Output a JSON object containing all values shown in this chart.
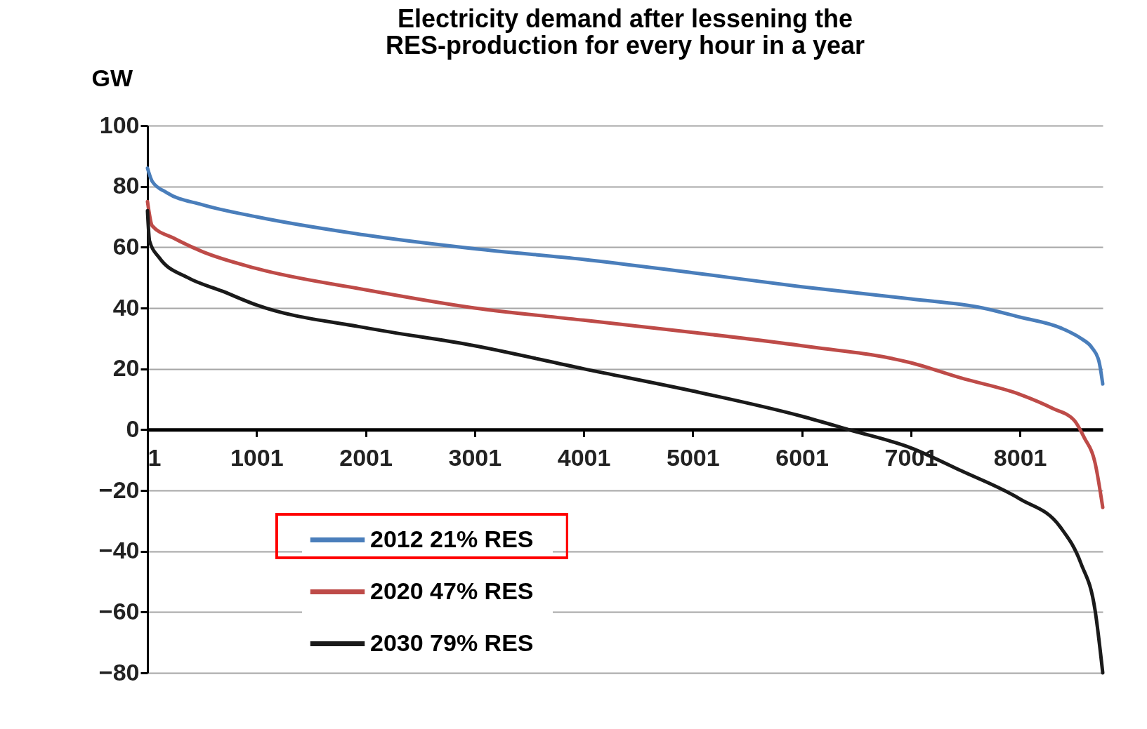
{
  "chart_data": {
    "type": "line",
    "title": "Electricity demand after lessening the\nRES-production for every hour in a year",
    "ylabel": "GW",
    "xlim": [
      1,
      8760
    ],
    "xticks": [
      1,
      1001,
      2001,
      3001,
      4001,
      5001,
      6001,
      7001,
      8001
    ],
    "ylim": [
      -80,
      100
    ],
    "yticks": [
      -80,
      -60,
      -40,
      -20,
      0,
      20,
      40,
      60,
      80,
      100
    ],
    "grid": "y",
    "legend": "bottom left",
    "marker": "none",
    "line_style": "solid",
    "series": [
      {
        "name": "2012  21%  RES",
        "color": "#4a7ebb",
        "x": [
          1,
          45,
          175,
          500,
          1000,
          2000,
          3000,
          4000,
          5000,
          6000,
          7000,
          7660,
          8000,
          8370,
          8560,
          8660,
          8725,
          8760
        ],
        "values": [
          86,
          81.6,
          78,
          74,
          70,
          64,
          59.5,
          56,
          51.6,
          47,
          43,
          40,
          37,
          33.5,
          30,
          27,
          22.5,
          15
        ]
      },
      {
        "name": "2020  47%  RES",
        "color": "#be4b48",
        "x": [
          1,
          45,
          240,
          500,
          1000,
          2000,
          3000,
          4000,
          5000,
          6000,
          7000,
          7460,
          8000,
          8300,
          8500,
          8590,
          8690,
          8760
        ],
        "values": [
          75,
          67,
          63,
          58.6,
          53,
          46,
          40,
          36,
          32,
          27.6,
          22,
          17,
          11.6,
          7,
          3,
          -2.6,
          -11,
          -25.6
        ]
      },
      {
        "name": "2030  79%  RES",
        "color": "#1a1a1a",
        "x": [
          1,
          20,
          110,
          370,
          690,
          1000,
          2000,
          3000,
          4000,
          5000,
          6000,
          6430,
          7000,
          7460,
          8000,
          8370,
          8560,
          8690,
          8760
        ],
        "values": [
          72,
          62,
          56.5,
          50,
          45.5,
          41,
          33.5,
          27.6,
          20,
          12.7,
          4.4,
          0,
          -6,
          -13.5,
          -22.8,
          -32,
          -44,
          -59.5,
          -80
        ]
      }
    ]
  }
}
